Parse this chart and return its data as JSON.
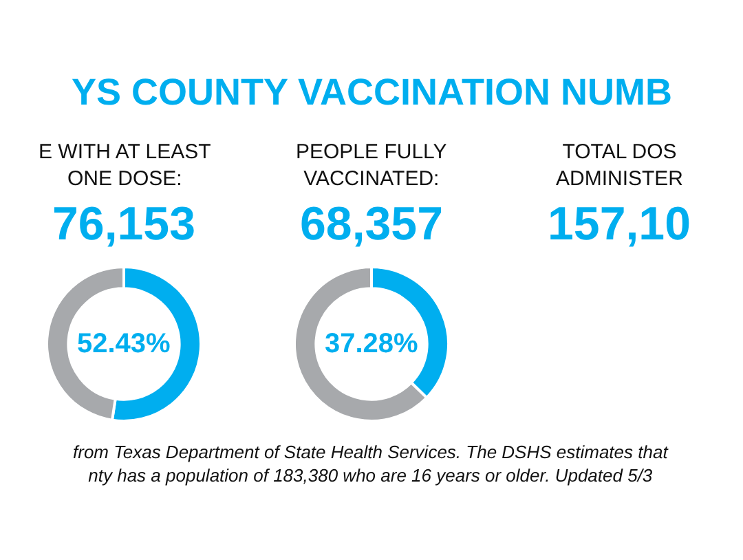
{
  "chart_data": [
    {
      "type": "donut",
      "title": "YS COUNTY VACCINATION NUMB",
      "subtitle": "E WITH AT LEAST\nONE DOSE:",
      "categories": [
        null,
        null
      ],
      "values": [
        52.43,
        47.57
      ],
      "colors": [
        "#00aeef",
        "#a7a9ac"
      ],
      "annotations": [
        "76,153",
        "52.43%",
        "from Texas Department of State Health Services. The DSHS estimates that\nnty has a population of 183,380 who are 16 years or older. Updated 5/3"
      ]
    },
    {
      "type": "donut",
      "subtitle": "PEOPLE FULLY\nVACCINATED:",
      "categories": [
        null,
        null
      ],
      "values": [
        37.28,
        62.72
      ],
      "colors": [
        "#00aeef",
        "#a7a9ac"
      ],
      "annotations": [
        "68,357",
        "37.28%"
      ]
    },
    {
      "type": "other",
      "subtitle": "TOTAL DOS\nADMINISTER",
      "annotations": [
        "157,10"
      ]
    }
  ]
}
